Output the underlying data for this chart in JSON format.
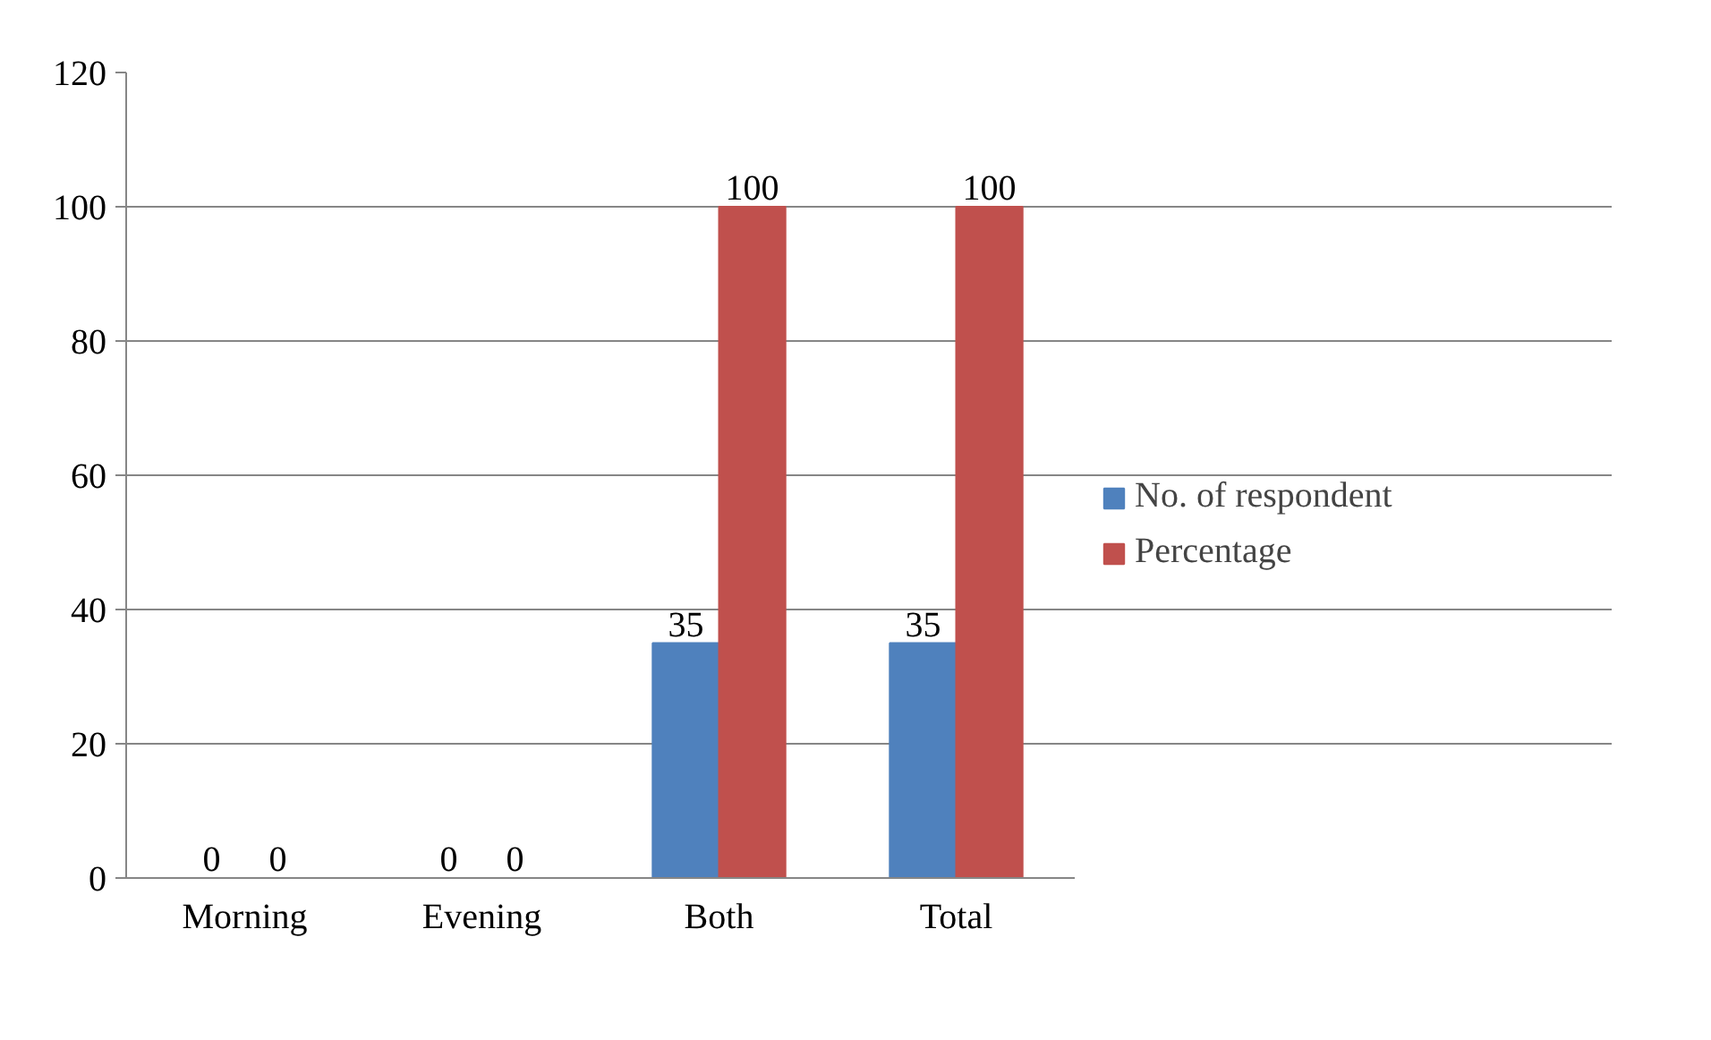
{
  "chart_data": {
    "type": "bar",
    "categories": [
      "Morning",
      "Evening",
      "Both",
      "Total"
    ],
    "series": [
      {
        "name": "No. of respondent",
        "color": "#4f81bd",
        "values": [
          0,
          0,
          35,
          35
        ]
      },
      {
        "name": "Percentage",
        "color": "#c0504d",
        "values": [
          0,
          0,
          100,
          100
        ]
      }
    ],
    "ylim": [
      0,
      120
    ],
    "yticks": [
      0,
      20,
      40,
      60,
      80,
      100,
      120
    ],
    "grid": "y",
    "legend": "right",
    "data_labels": true
  }
}
